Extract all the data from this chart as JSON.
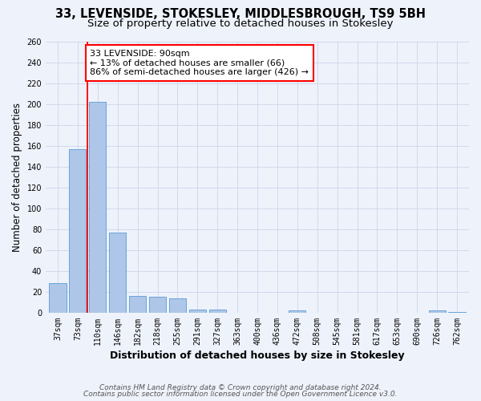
{
  "title_line1": "33, LEVENSIDE, STOKESLEY, MIDDLESBROUGH, TS9 5BH",
  "title_line2": "Size of property relative to detached houses in Stokesley",
  "xlabel": "Distribution of detached houses by size in Stokesley",
  "ylabel": "Number of detached properties",
  "categories": [
    "37sqm",
    "73sqm",
    "110sqm",
    "146sqm",
    "182sqm",
    "218sqm",
    "255sqm",
    "291sqm",
    "327sqm",
    "363sqm",
    "400sqm",
    "436sqm",
    "472sqm",
    "508sqm",
    "545sqm",
    "581sqm",
    "617sqm",
    "653sqm",
    "690sqm",
    "726sqm",
    "762sqm"
  ],
  "values": [
    28,
    157,
    202,
    77,
    16,
    15,
    14,
    3,
    3,
    0,
    0,
    0,
    2,
    0,
    0,
    0,
    0,
    0,
    0,
    2,
    1
  ],
  "bar_color": "#aec6e8",
  "bar_edgecolor": "#5b9bd5",
  "redline_x": 1.5,
  "annotation_text": "33 LEVENSIDE: 90sqm\n← 13% of detached houses are smaller (66)\n86% of semi-detached houses are larger (426) →",
  "annotation_box_color": "white",
  "annotation_box_edgecolor": "red",
  "redline_color": "red",
  "ylim": [
    0,
    260
  ],
  "yticks": [
    0,
    20,
    40,
    60,
    80,
    100,
    120,
    140,
    160,
    180,
    200,
    220,
    240,
    260
  ],
  "grid_color": "#ccd6e8",
  "footer_line1": "Contains HM Land Registry data © Crown copyright and database right 2024.",
  "footer_line2": "Contains public sector information licensed under the Open Government Licence v3.0.",
  "bg_color": "#eef2fb",
  "title_fontsize": 10.5,
  "subtitle_fontsize": 9.5,
  "ylabel_fontsize": 8.5,
  "xlabel_fontsize": 9,
  "tick_fontsize": 7,
  "annotation_fontsize": 8,
  "footer_fontsize": 6.5
}
